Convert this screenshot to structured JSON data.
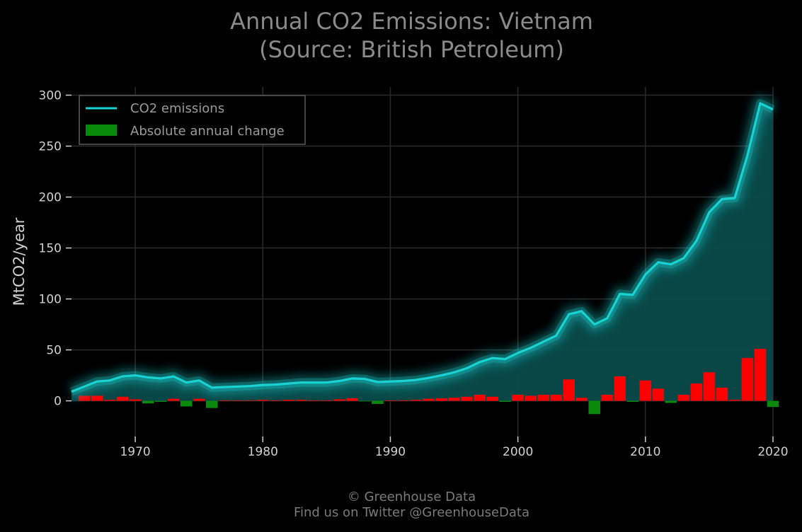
{
  "header": {
    "title_line1": "Annual CO2 Emissions: Vietnam",
    "title_line2": "(Source: British Petroleum)"
  },
  "footer": {
    "line1": "© Greenhouse Data",
    "line2": "Find us on Twitter @GreenhouseData"
  },
  "colors": {
    "line": "#19d3d3",
    "area": "#0a4b4b",
    "positive_change": "#ff0000",
    "negative_change": "#0a8a0a",
    "grid": "#2a2a2a"
  },
  "chart_data": {
    "type": "line",
    "ylabel": "MtCO2/year",
    "xlim": [
      1965,
      2020
    ],
    "ylim": [
      -35,
      308
    ],
    "xticks": [
      1970,
      1980,
      1990,
      2000,
      2010,
      2020
    ],
    "yticks": [
      0,
      50,
      100,
      150,
      200,
      250,
      300
    ],
    "grid": true,
    "legend_position": "top-left",
    "legend": [
      "CO2 emissions",
      "Absolute annual change"
    ],
    "x": [
      1965,
      1966,
      1967,
      1968,
      1969,
      1970,
      1971,
      1972,
      1973,
      1974,
      1975,
      1976,
      1977,
      1978,
      1979,
      1980,
      1981,
      1982,
      1983,
      1984,
      1985,
      1986,
      1987,
      1988,
      1989,
      1990,
      1991,
      1992,
      1993,
      1994,
      1995,
      1996,
      1997,
      1998,
      1999,
      2000,
      2001,
      2002,
      2003,
      2004,
      2005,
      2006,
      2007,
      2008,
      2009,
      2010,
      2011,
      2012,
      2013,
      2014,
      2015,
      2016,
      2017,
      2018,
      2019,
      2020
    ],
    "series": [
      {
        "name": "CO2 emissions",
        "type": "line",
        "values": [
          9,
          14,
          19,
          20,
          24,
          25,
          23,
          22,
          24,
          18,
          20,
          13,
          13.5,
          14,
          14.5,
          15.5,
          16,
          17,
          18,
          18,
          18,
          19.5,
          22,
          21.5,
          18.5,
          19,
          19.5,
          20.5,
          22.5,
          25,
          28,
          32,
          38,
          42,
          41,
          47,
          52,
          58,
          64,
          85,
          88,
          75,
          81,
          105,
          104,
          124,
          136,
          134,
          140,
          157,
          185,
          198,
          199,
          241,
          292,
          286
        ]
      },
      {
        "name": "Absolute annual change",
        "type": "bar",
        "values": [
          null,
          5,
          5,
          1,
          4,
          1.5,
          -2.5,
          -1,
          2,
          -5.5,
          2,
          -7,
          0.5,
          0.5,
          0.5,
          1,
          0.5,
          1,
          1,
          0.5,
          0.5,
          1.5,
          2.5,
          -0.5,
          -3,
          0.5,
          0.5,
          1,
          2,
          2.5,
          3,
          4,
          6,
          4,
          -1,
          6,
          5,
          6,
          6,
          21,
          3,
          -13,
          6,
          24,
          -1,
          20,
          12,
          -2,
          6,
          17,
          28,
          13,
          1,
          42,
          51,
          -6
        ]
      }
    ]
  }
}
